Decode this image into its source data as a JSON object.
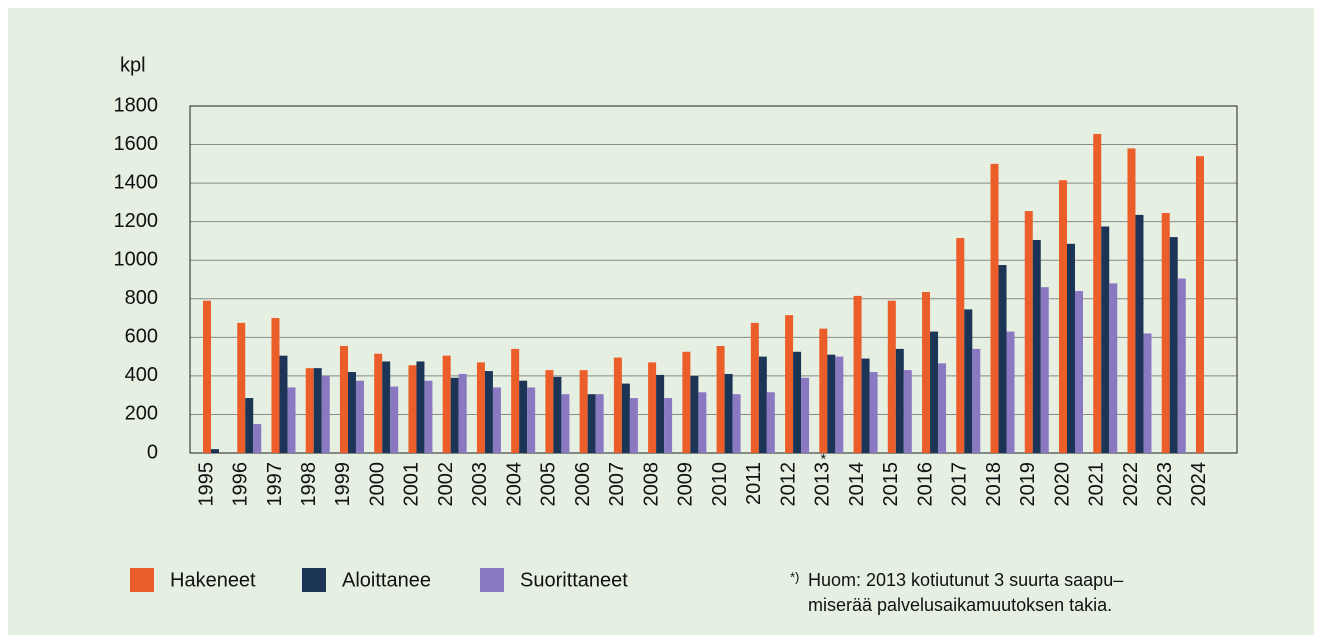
{
  "chart_data": {
    "type": "bar",
    "y_label": "kpl",
    "categories": [
      "1995",
      "1996",
      "1997",
      "1998",
      "1999",
      "2000",
      "2001",
      "2002",
      "2003",
      "2004",
      "2005",
      "2006",
      "2007",
      "2008",
      "2009",
      "2010",
      "2011",
      "2012",
      "2013",
      "2014",
      "2015",
      "2016",
      "2017",
      "2018",
      "2019",
      "2020",
      "2021",
      "2022",
      "2023",
      "2024"
    ],
    "series": [
      {
        "name": "Hakeneet",
        "color": "#eb5e2a",
        "values": [
          790,
          675,
          700,
          440,
          555,
          515,
          455,
          505,
          470,
          540,
          430,
          430,
          495,
          470,
          525,
          555,
          675,
          715,
          645,
          815,
          790,
          835,
          1115,
          1500,
          1255,
          1415,
          1655,
          1580,
          1245,
          1540
        ]
      },
      {
        "name": "Aloittanee",
        "color": "#1c3557",
        "values": [
          20,
          285,
          505,
          440,
          420,
          475,
          475,
          390,
          425,
          375,
          395,
          305,
          360,
          405,
          400,
          410,
          500,
          525,
          510,
          490,
          540,
          630,
          745,
          975,
          1105,
          1085,
          1175,
          1235,
          1120,
          null
        ]
      },
      {
        "name": "Suorittaneet",
        "color": "#8a78c0",
        "values": [
          null,
          150,
          340,
          400,
          375,
          345,
          375,
          410,
          340,
          340,
          305,
          305,
          285,
          285,
          315,
          305,
          315,
          390,
          500,
          420,
          430,
          465,
          540,
          630,
          860,
          840,
          880,
          620,
          905,
          null
        ]
      }
    ],
    "ylim": [
      0,
      1800
    ],
    "yticks": [
      0,
      200,
      400,
      600,
      800,
      1000,
      1200,
      1400,
      1600,
      1800
    ],
    "grid": true,
    "annotation": "*",
    "note_marker": "*)",
    "note": [
      "Huom: 2013 kotiutunut 3 suurta saapu–",
      "miserää palvelusaikamuutoksen takia."
    ]
  }
}
